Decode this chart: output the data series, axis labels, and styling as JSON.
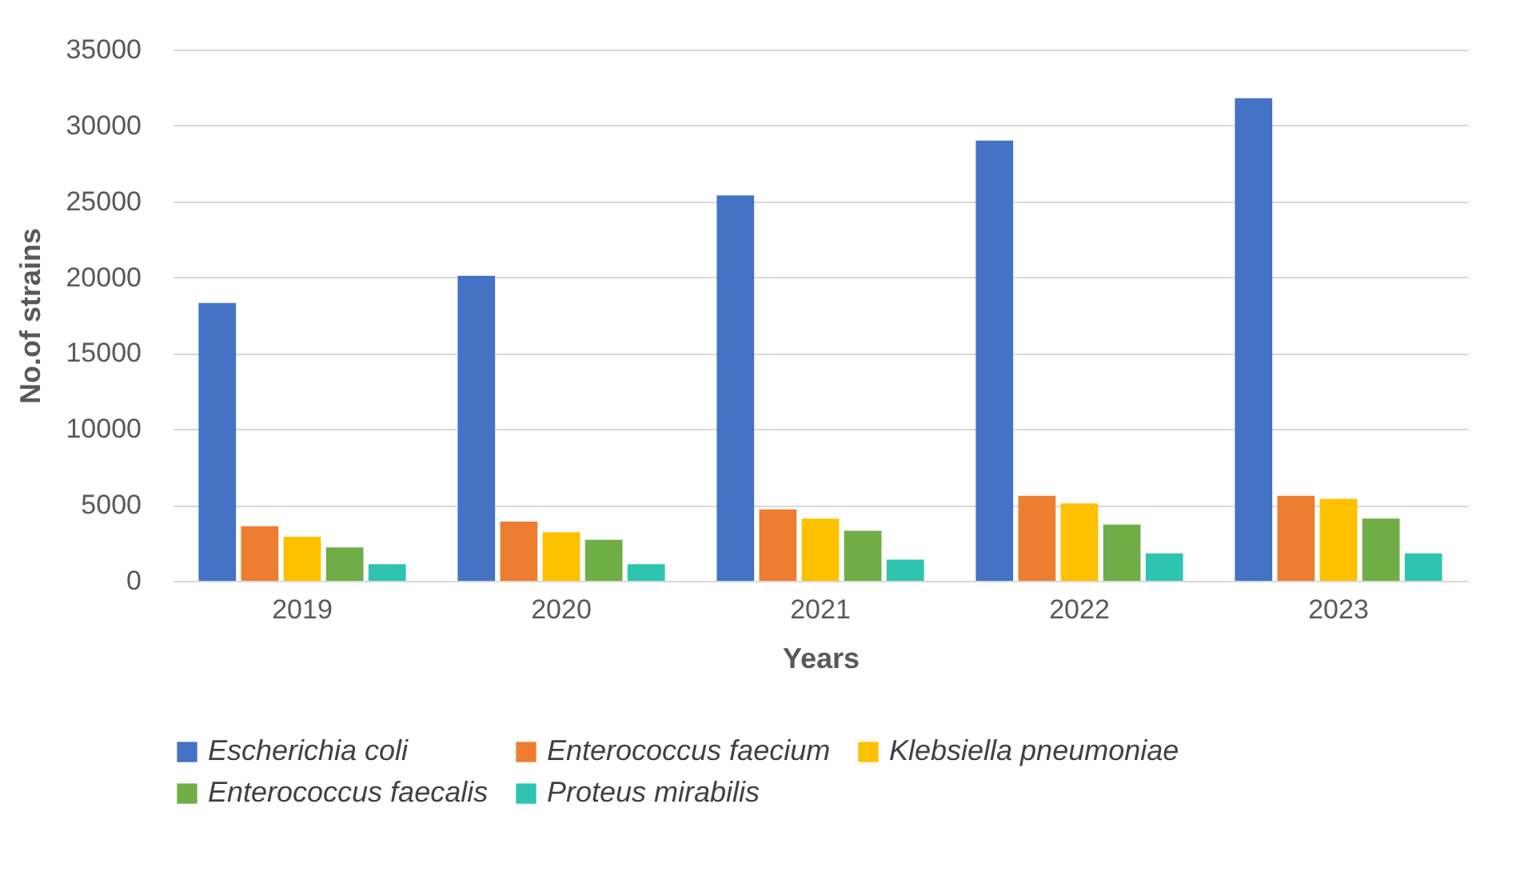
{
  "chart_data": {
    "type": "bar",
    "xlabel": "Years",
    "ylabel": "No.of strains",
    "categories": [
      "2019",
      "2020",
      "2021",
      "2022",
      "2023"
    ],
    "series": [
      {
        "name": "Escherichia coli",
        "color": "#4472c4",
        "values": [
          18300,
          20100,
          25400,
          29000,
          31800
        ]
      },
      {
        "name": "Enterococcus faecium",
        "color": "#ed7d31",
        "values": [
          3600,
          3900,
          4700,
          5600,
          5600
        ]
      },
      {
        "name": "Klebsiella pneumoniae",
        "color": "#ffc000",
        "values": [
          2900,
          3200,
          4100,
          5100,
          5400
        ]
      },
      {
        "name": "Enterococcus faecalis",
        "color": "#70ad47",
        "values": [
          2200,
          2700,
          3300,
          3700,
          4100
        ]
      },
      {
        "name": "Proteus mirabilis",
        "color": "#2ec4b0",
        "values": [
          1100,
          1100,
          1400,
          1800,
          1800
        ]
      }
    ],
    "ylim": [
      0,
      35000
    ],
    "yticks": [
      0,
      5000,
      10000,
      15000,
      20000,
      25000,
      30000,
      35000
    ],
    "grid": "y",
    "legend": "bottom"
  }
}
